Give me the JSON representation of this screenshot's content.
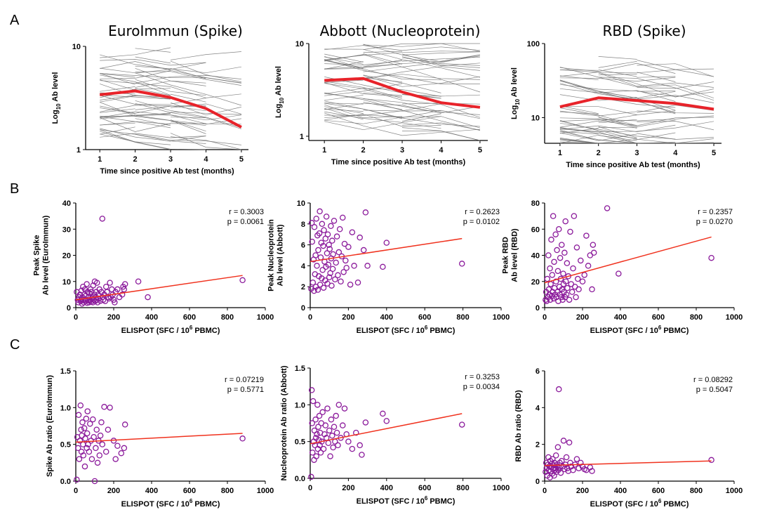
{
  "row_labels": {
    "a": "A",
    "b": "B",
    "c": "C"
  },
  "chart_data": [
    {
      "id": "A1",
      "type": "line",
      "title": "EuroImmun (Spike)",
      "xlabel": "Time since positive Ab test (months)",
      "ylabel": "Log10 Ab level",
      "ylabel_base": "Log",
      "ylabel_sub": "10",
      "ylabel_rest": " Ab level",
      "yscale": "log",
      "ylim": [
        1,
        10
      ],
      "xlim": [
        0.6,
        5.2
      ],
      "xticks": [
        1,
        2,
        3,
        4,
        5
      ],
      "yticks": [
        1,
        10
      ],
      "mean_color": "#e8232a",
      "indiv_color": "#6e6e6e",
      "mean": {
        "x": [
          1,
          2,
          3,
          4,
          5
        ],
        "y": [
          3.4,
          3.7,
          3.2,
          2.5,
          1.65
        ]
      }
    },
    {
      "id": "A2",
      "type": "line",
      "title": "Abbott (Nucleoprotein)",
      "xlabel": "Time since positive Ab test (months)",
      "ylabel": "Log10 Ab level",
      "ylabel_base": "Log",
      "ylabel_sub": "10",
      "ylabel_rest": " Ab level",
      "yscale": "log",
      "ylim": [
        0.9,
        10
      ],
      "xlim": [
        0.6,
        5.2
      ],
      "xticks": [
        1,
        2,
        3,
        4,
        5
      ],
      "yticks": [
        1,
        10
      ],
      "mean_color": "#e8232a",
      "indiv_color": "#6e6e6e",
      "mean": {
        "x": [
          1,
          2,
          3,
          4,
          5
        ],
        "y": [
          4.0,
          4.2,
          3.0,
          2.3,
          2.05
        ]
      }
    },
    {
      "id": "A3",
      "type": "line",
      "title": "RBD (Spike)",
      "xlabel": "Time since positive Ab test (months)",
      "ylabel": "Log10 Ab level",
      "ylabel_base": "Log",
      "ylabel_sub": "10",
      "ylabel_rest": " Ab level",
      "yscale": "log",
      "ylim": [
        4.5,
        100
      ],
      "xlim": [
        0.6,
        5.2
      ],
      "xticks": [
        1,
        2,
        3,
        4,
        5
      ],
      "yticks": [
        10,
        100
      ],
      "mean_color": "#e8232a",
      "indiv_color": "#6e6e6e",
      "mean": {
        "x": [
          1,
          2,
          3,
          4,
          5
        ],
        "y": [
          14,
          18.5,
          17,
          15.5,
          13
        ]
      }
    },
    {
      "id": "B1",
      "type": "scatter",
      "xlabel": "ELISPOT (SFC / 10^6 PBMC)",
      "xlabel_base": "ELISPOT (SFC / 10",
      "xlabel_sup": "6",
      "xlabel_rest": " PBMC)",
      "ylabel_lines": [
        "Peak Spike",
        "Ab level (EuroImmun)"
      ],
      "xlim": [
        0,
        1000
      ],
      "ylim": [
        0,
        40
      ],
      "xticks": [
        0,
        200,
        400,
        600,
        800,
        1000
      ],
      "yticks": [
        0,
        10,
        20,
        30,
        40
      ],
      "r": "r = 0.3003",
      "p": "p = 0.0061",
      "point_color": "#8b1a9b",
      "fit_color": "#f0321e",
      "fit": {
        "x": [
          0,
          880
        ],
        "y": [
          3.0,
          12.3
        ]
      },
      "x": [
        5,
        10,
        14,
        18,
        22,
        25,
        28,
        30,
        33,
        35,
        38,
        40,
        42,
        45,
        48,
        50,
        52,
        55,
        58,
        60,
        62,
        65,
        68,
        70,
        72,
        75,
        78,
        80,
        82,
        85,
        88,
        90,
        92,
        95,
        98,
        100,
        102,
        105,
        108,
        110,
        112,
        115,
        118,
        120,
        125,
        130,
        135,
        140,
        145,
        150,
        155,
        160,
        165,
        170,
        175,
        180,
        185,
        190,
        195,
        200,
        205,
        210,
        220,
        230,
        245,
        250,
        255,
        260,
        330,
        380,
        880,
        140
      ],
      "y": [
        6,
        3,
        2,
        4,
        5,
        2.5,
        3,
        6.5,
        1.5,
        4,
        8,
        3,
        2,
        5,
        7,
        2.5,
        4.5,
        3,
        9,
        1.8,
        6,
        2.8,
        4,
        2,
        5.5,
        3,
        7,
        2.2,
        6,
        3.5,
        4,
        2,
        8.5,
        3,
        5,
        10,
        2.5,
        4,
        6,
        3,
        9.5,
        2,
        5,
        3.5,
        7,
        2.6,
        6,
        4,
        3,
        5,
        2.5,
        8,
        6,
        4,
        3.5,
        9.5,
        4,
        7,
        5,
        3,
        2,
        6,
        7,
        4,
        5,
        8,
        7,
        9,
        10,
        4,
        10.5,
        34
      ]
    },
    {
      "id": "B2",
      "type": "scatter",
      "xlabel": "ELISPOT (SFC / 10^6 PBMC)",
      "xlabel_base": "ELISPOT (SFC / 10",
      "xlabel_sup": "6",
      "xlabel_rest": " PBMC)",
      "ylabel_lines": [
        "Peak Nucleoprotein",
        "Ab level (Abbott)"
      ],
      "xlim": [
        0,
        1000
      ],
      "ylim": [
        0,
        10
      ],
      "xticks": [
        0,
        200,
        400,
        600,
        800,
        1000
      ],
      "yticks": [
        0,
        2,
        4,
        6,
        8,
        10
      ],
      "r": "r = 0.2623",
      "p": "p = 0.0102",
      "point_color": "#8b1a9b",
      "fit_color": "#f0321e",
      "fit": {
        "x": [
          0,
          795
        ],
        "y": [
          4.4,
          6.6
        ]
      },
      "x": [
        5,
        8,
        10,
        14,
        18,
        20,
        22,
        25,
        28,
        30,
        32,
        35,
        38,
        40,
        42,
        45,
        48,
        50,
        52,
        55,
        58,
        60,
        62,
        65,
        68,
        70,
        72,
        75,
        78,
        80,
        82,
        85,
        88,
        90,
        92,
        95,
        98,
        100,
        102,
        105,
        108,
        110,
        112,
        115,
        118,
        120,
        125,
        130,
        135,
        140,
        145,
        150,
        155,
        160,
        165,
        170,
        175,
        180,
        185,
        190,
        200,
        210,
        220,
        230,
        250,
        260,
        280,
        290,
        300,
        380,
        400,
        795
      ],
      "y": [
        1.8,
        8.1,
        6.3,
        2.4,
        4.6,
        1.6,
        7.7,
        3.2,
        5.0,
        2.0,
        8.5,
        4.0,
        6.9,
        1.7,
        5.5,
        3.0,
        7.1,
        9.2,
        2.2,
        4.8,
        6.2,
        2.8,
        8.0,
        3.6,
        5.9,
        1.9,
        7.4,
        4.4,
        2.6,
        6.6,
        3.9,
        8.7,
        5.2,
        2.3,
        7.0,
        4.1,
        6.0,
        2.9,
        5.6,
        3.3,
        7.8,
        4.7,
        2.1,
        6.4,
        3.7,
        5.1,
        8.3,
        2.7,
        4.3,
        6.8,
        3.1,
        5.3,
        7.5,
        2.5,
        4.9,
        8.6,
        3.4,
        6.1,
        4.5,
        3.8,
        5.8,
        2.2,
        7.2,
        4.0,
        2.4,
        6.7,
        5.5,
        9.1,
        4.0,
        3.9,
        6.2,
        4.2
      ]
    },
    {
      "id": "B3",
      "type": "scatter",
      "xlabel": "ELISPOT (SFC / 10^6 PBMC)",
      "xlabel_base": "ELISPOT (SFC / 10",
      "xlabel_sup": "6",
      "xlabel_rest": " PBMC)",
      "ylabel_lines": [
        "Peak RBD",
        "Ab level (RBD)"
      ],
      "xlim": [
        0,
        1000
      ],
      "ylim": [
        0,
        80
      ],
      "xticks": [
        0,
        200,
        400,
        600,
        800,
        1000
      ],
      "yticks": [
        0,
        20,
        40,
        60,
        80
      ],
      "r": "r = 0.2357",
      "p": "p = 0.0270",
      "point_color": "#8b1a9b",
      "fit_color": "#f0321e",
      "fit": {
        "x": [
          0,
          880
        ],
        "y": [
          19,
          54
        ]
      },
      "x": [
        5,
        8,
        10,
        14,
        18,
        20,
        22,
        25,
        28,
        30,
        32,
        35,
        38,
        40,
        42,
        45,
        48,
        50,
        52,
        55,
        58,
        60,
        62,
        65,
        68,
        70,
        72,
        75,
        78,
        80,
        82,
        85,
        88,
        90,
        92,
        95,
        98,
        100,
        102,
        105,
        108,
        110,
        112,
        115,
        118,
        120,
        125,
        130,
        135,
        140,
        145,
        150,
        155,
        160,
        165,
        170,
        175,
        180,
        190,
        200,
        210,
        220,
        230,
        240,
        250,
        255,
        260,
        330,
        390,
        880
      ],
      "y": [
        6,
        12,
        5,
        22,
        8,
        40,
        14,
        10,
        30,
        6,
        18,
        52,
        9,
        25,
        12,
        70,
        7,
        35,
        15,
        10,
        56,
        20,
        8,
        44,
        12,
        28,
        5,
        60,
        16,
        10,
        38,
        22,
        8,
        48,
        14,
        6,
        26,
        18,
        12,
        42,
        8,
        66,
        20,
        10,
        34,
        15,
        24,
        6,
        58,
        18,
        12,
        30,
        70,
        16,
        8,
        46,
        22,
        14,
        36,
        20,
        25,
        55,
        32,
        40,
        14,
        48,
        42,
        76,
        26,
        38
      ]
    },
    {
      "id": "C1",
      "type": "scatter",
      "xlabel": "ELISPOT (SFC / 10^6 PBMC)",
      "xlabel_base": "ELISPOT (SFC / 10",
      "xlabel_sup": "6",
      "xlabel_rest": " PBMC)",
      "ylabel_lines": [
        "Spike Ab ratio (EuroImmun)"
      ],
      "xlim": [
        0,
        1000
      ],
      "ylim": [
        0,
        1.5
      ],
      "xticks": [
        0,
        200,
        400,
        600,
        800,
        1000
      ],
      "yticks": [
        0,
        0.5,
        1.0,
        1.5
      ],
      "ytick_labels": [
        "0.0",
        "0.5",
        "1.0",
        "1.5"
      ],
      "r": "r = 0.07219",
      "p": "p = 0.5771",
      "point_color": "#8b1a9b",
      "fit_color": "#f0321e",
      "fit": {
        "x": [
          0,
          880
        ],
        "y": [
          0.53,
          0.65
        ]
      },
      "x": [
        5,
        8,
        12,
        15,
        18,
        22,
        25,
        28,
        30,
        32,
        35,
        38,
        40,
        45,
        48,
        50,
        55,
        58,
        60,
        62,
        65,
        70,
        75,
        80,
        85,
        90,
        95,
        100,
        105,
        110,
        115,
        120,
        125,
        130,
        135,
        140,
        150,
        160,
        170,
        180,
        200,
        210,
        220,
        240,
        255,
        260,
        880
      ],
      "y": [
        0.02,
        0.6,
        0.45,
        0.9,
        0.3,
        0.55,
        1.03,
        0.7,
        0.4,
        0.62,
        0.8,
        0.5,
        0.35,
        0.72,
        0.2,
        0.58,
        0.85,
        0.45,
        0.65,
        0.95,
        0.5,
        0.4,
        0.78,
        0.55,
        0.3,
        0.84,
        0.6,
        0.0,
        0.45,
        0.7,
        0.25,
        0.55,
        0.35,
        0.62,
        0.8,
        0.5,
        1.01,
        0.4,
        0.7,
        1.0,
        0.55,
        0.3,
        0.48,
        0.38,
        0.45,
        0.77,
        0.58
      ]
    },
    {
      "id": "C2",
      "type": "scatter",
      "xlabel": "ELISPOT (SFC / 10^6 PBMC)",
      "xlabel_base": "ELISPOT (SFC / 10",
      "xlabel_sup": "6",
      "xlabel_rest": " PBMC)",
      "ylabel_lines": [
        "Nucleoprotein Ab ratio (Abbott)"
      ],
      "xlim": [
        0,
        1000
      ],
      "ylim": [
        0,
        1.5
      ],
      "xticks": [
        0,
        200,
        400,
        600,
        800,
        1000
      ],
      "yticks": [
        0,
        0.5,
        1.0,
        1.5
      ],
      "ytick_labels": [
        "0.0",
        "0.5",
        "1.0",
        "1.5"
      ],
      "r": "r = 0.3253",
      "p": "p = 0.0034",
      "point_color": "#8b1a9b",
      "fit_color": "#f0321e",
      "fit": {
        "x": [
          0,
          795
        ],
        "y": [
          0.47,
          0.88
        ]
      },
      "x": [
        5,
        8,
        10,
        12,
        15,
        18,
        20,
        22,
        25,
        28,
        30,
        32,
        35,
        38,
        40,
        42,
        45,
        48,
        50,
        52,
        55,
        58,
        60,
        65,
        70,
        75,
        80,
        85,
        90,
        95,
        100,
        105,
        110,
        115,
        120,
        125,
        130,
        135,
        140,
        145,
        150,
        160,
        170,
        180,
        190,
        200,
        220,
        240,
        260,
        270,
        290,
        380,
        400,
        795
      ],
      "y": [
        0.02,
        1.2,
        0.75,
        0.35,
        1.05,
        0.5,
        0.25,
        0.65,
        0.45,
        0.8,
        0.55,
        0.3,
        0.6,
        1.0,
        0.4,
        0.7,
        0.52,
        0.85,
        0.45,
        0.62,
        0.35,
        0.75,
        0.5,
        0.9,
        0.4,
        0.6,
        0.72,
        0.55,
        0.95,
        0.48,
        0.65,
        0.3,
        0.8,
        0.58,
        0.42,
        0.7,
        0.5,
        0.85,
        0.62,
        0.45,
        1.0,
        0.55,
        0.72,
        0.95,
        0.6,
        0.5,
        0.4,
        0.62,
        0.45,
        0.32,
        0.76,
        0.88,
        0.78,
        0.73
      ]
    },
    {
      "id": "C3",
      "type": "scatter",
      "xlabel": "ELISPOT (SFC / 10^6 PBMC)",
      "xlabel_base": "ELISPOT (SFC / 10",
      "xlabel_sup": "6",
      "xlabel_rest": " PBMC)",
      "ylabel_lines": [
        "RBD Ab ratio (RBD)"
      ],
      "xlim": [
        0,
        1000
      ],
      "ylim": [
        0,
        6
      ],
      "xticks": [
        0,
        200,
        400,
        600,
        800,
        1000
      ],
      "yticks": [
        0,
        2,
        4,
        6
      ],
      "r": "r = 0.08292",
      "p": "p = 0.5047",
      "point_color": "#8b1a9b",
      "fit_color": "#f0321e",
      "fit": {
        "x": [
          0,
          880
        ],
        "y": [
          0.85,
          1.1
        ]
      },
      "x": [
        5,
        8,
        10,
        14,
        18,
        20,
        22,
        25,
        28,
        30,
        32,
        35,
        38,
        40,
        42,
        45,
        48,
        50,
        52,
        55,
        58,
        60,
        62,
        65,
        68,
        70,
        72,
        75,
        78,
        80,
        85,
        90,
        95,
        100,
        105,
        110,
        115,
        120,
        125,
        130,
        135,
        140,
        150,
        160,
        170,
        180,
        190,
        200,
        210,
        220,
        240,
        250,
        880
      ],
      "y": [
        0.5,
        1.0,
        0.7,
        0.3,
        0.9,
        1.3,
        0.6,
        0.8,
        0.2,
        1.1,
        0.55,
        0.75,
        0.95,
        0.4,
        1.2,
        0.65,
        0.85,
        0.3,
        1.0,
        0.6,
        0.7,
        1.4,
        0.5,
        0.9,
        0.8,
        1.85,
        0.6,
        5.0,
        0.75,
        1.0,
        0.45,
        1.1,
        0.8,
        2.2,
        0.65,
        0.9,
        1.3,
        0.7,
        0.55,
        2.1,
        1.0,
        0.8,
        0.6,
        0.9,
        1.2,
        0.7,
        1.0,
        0.8,
        0.65,
        0.6,
        0.75,
        0.55,
        1.15
      ]
    }
  ]
}
